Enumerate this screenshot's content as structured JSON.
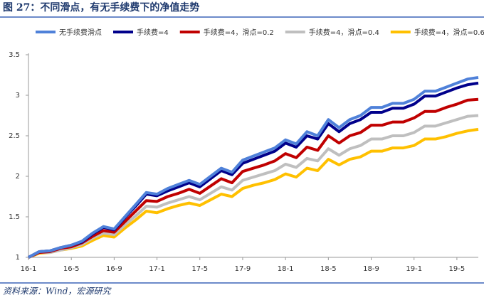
{
  "title": "图 27：不同滑点，有无手续费下的净值走势",
  "source": "资料来源：Wind，宏源研究",
  "chart_data": {
    "type": "line",
    "categories": [
      "16-1",
      null,
      null,
      null,
      "16-5",
      null,
      null,
      null,
      "16-9",
      null,
      null,
      null,
      "17-1",
      null,
      null,
      null,
      "17-5",
      null,
      null,
      null,
      "17-9",
      null,
      null,
      null,
      "18-1",
      null,
      null,
      null,
      "18-5",
      null,
      null,
      null,
      "18-9",
      null,
      null,
      null,
      "19-1",
      null,
      null,
      null,
      "19-5",
      null,
      null
    ],
    "ylim": [
      1,
      3.5
    ],
    "yticks": [
      1,
      1.5,
      2,
      2.5,
      3,
      3.5
    ],
    "grid": false,
    "legend": "top",
    "series": [
      {
        "name": "无手续费滑点",
        "color": "#4f81d9",
        "values": [
          1,
          1.07,
          1.08,
          1.12,
          1.15,
          1.2,
          1.3,
          1.38,
          1.35,
          1.5,
          1.65,
          1.8,
          1.78,
          1.85,
          1.9,
          1.95,
          1.9,
          2.0,
          2.1,
          2.05,
          2.2,
          2.25,
          2.3,
          2.35,
          2.45,
          2.4,
          2.55,
          2.5,
          2.7,
          2.6,
          2.7,
          2.75,
          2.85,
          2.85,
          2.9,
          2.9,
          2.95,
          3.05,
          3.05,
          3.1,
          3.15,
          3.2,
          3.22
        ]
      },
      {
        "name": "手续费=4",
        "color": "#00008b",
        "values": [
          1,
          1.07,
          1.08,
          1.12,
          1.15,
          1.19,
          1.29,
          1.37,
          1.34,
          1.49,
          1.63,
          1.78,
          1.76,
          1.82,
          1.87,
          1.92,
          1.87,
          1.97,
          2.07,
          2.02,
          2.16,
          2.21,
          2.26,
          2.31,
          2.41,
          2.36,
          2.5,
          2.46,
          2.65,
          2.55,
          2.65,
          2.7,
          2.79,
          2.79,
          2.84,
          2.84,
          2.89,
          2.99,
          2.99,
          3.04,
          3.09,
          3.13,
          3.15
        ]
      },
      {
        "name": "手续费=4，滑点=0.2",
        "color": "#c00000",
        "values": [
          1,
          1.06,
          1.07,
          1.11,
          1.13,
          1.18,
          1.26,
          1.33,
          1.31,
          1.44,
          1.57,
          1.7,
          1.69,
          1.75,
          1.79,
          1.84,
          1.79,
          1.88,
          1.97,
          1.92,
          2.06,
          2.1,
          2.14,
          2.19,
          2.28,
          2.23,
          2.36,
          2.32,
          2.5,
          2.41,
          2.5,
          2.54,
          2.63,
          2.63,
          2.67,
          2.67,
          2.72,
          2.8,
          2.8,
          2.85,
          2.89,
          2.94,
          2.95
        ]
      },
      {
        "name": "手续费=4，滑点=0.4",
        "color": "#bfbfbf",
        "values": [
          1,
          1.06,
          1.06,
          1.09,
          1.12,
          1.16,
          1.24,
          1.3,
          1.28,
          1.4,
          1.51,
          1.63,
          1.62,
          1.67,
          1.71,
          1.75,
          1.71,
          1.79,
          1.87,
          1.83,
          1.95,
          1.99,
          2.03,
          2.07,
          2.15,
          2.11,
          2.22,
          2.19,
          2.34,
          2.26,
          2.34,
          2.38,
          2.46,
          2.46,
          2.5,
          2.5,
          2.54,
          2.62,
          2.62,
          2.66,
          2.7,
          2.74,
          2.75
        ]
      },
      {
        "name": "手续费=4，滑点=0.6",
        "color": "#ffc000",
        "values": [
          1,
          1.05,
          1.06,
          1.09,
          1.11,
          1.14,
          1.21,
          1.27,
          1.25,
          1.36,
          1.46,
          1.57,
          1.55,
          1.6,
          1.64,
          1.67,
          1.64,
          1.71,
          1.78,
          1.75,
          1.85,
          1.89,
          1.92,
          1.96,
          2.03,
          1.99,
          2.1,
          2.07,
          2.21,
          2.14,
          2.21,
          2.24,
          2.31,
          2.31,
          2.35,
          2.35,
          2.38,
          2.46,
          2.46,
          2.49,
          2.53,
          2.56,
          2.58
        ]
      }
    ]
  }
}
